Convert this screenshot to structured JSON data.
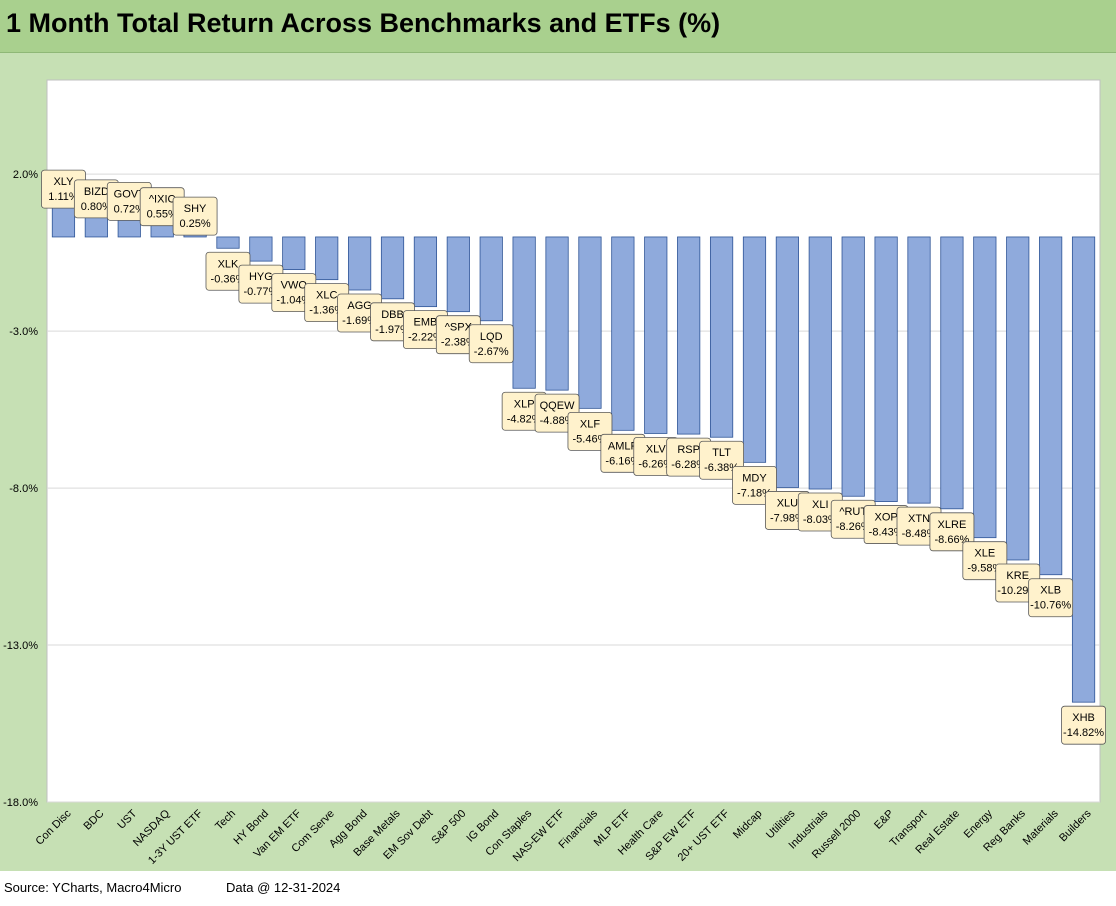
{
  "title": "1 Month Total Return Across Benchmarks and ETFs (%)",
  "footer": {
    "source": "Source: YCharts, Macro4Micro",
    "date": "Data @ 12-31-2024"
  },
  "colors": {
    "bar": "#8faadc",
    "bar_border": "#2f5597",
    "label_fill": "#fff2cc",
    "background": "#c6e0b4",
    "title_bg": "#a9d08e"
  },
  "chart_data": {
    "type": "bar",
    "title": "1 Month Total Return Across Benchmarks and ETFs (%)",
    "xlabel": "",
    "ylabel": "",
    "ylim": [
      -18,
      5
    ],
    "yticks": [
      2,
      -3,
      -8,
      -13,
      -18
    ],
    "ytick_labels": [
      "2.0%",
      "-3.0%",
      "-8.0%",
      "-13.0%",
      "-18.0%"
    ],
    "grid": true,
    "categories": [
      "Con Disc",
      "BDC",
      "UST",
      "NASDAQ",
      "1-3Y UST ETF",
      "Tech",
      "HY Bond",
      "Van EM ETF",
      "Com Serve",
      "Agg Bond",
      "Base Metals",
      "EM Sov Debt",
      "S&P 500",
      "IG Bond",
      "Con Staples",
      "NAS-EW ETF",
      "Financials",
      "MLP ETF",
      "Health Care",
      "S&P EW ETF",
      "20+ UST ETF",
      "Midcap",
      "Utilities",
      "Industrials",
      "Russell 2000",
      "E&P",
      "Transport",
      "Real Estate",
      "Energy",
      "Reg Banks",
      "Materials",
      "Builders"
    ],
    "tickers": [
      "XLY",
      "BIZD",
      "GOVT",
      "^IXIC",
      "SHY",
      "XLK",
      "HYG",
      "VWO",
      "XLC",
      "AGG",
      "DBB",
      "EMB",
      "^SPX",
      "LQD",
      "XLP",
      "QQEW",
      "XLF",
      "AMLP",
      "XLV",
      "RSP",
      "TLT",
      "MDY",
      "XLU",
      "XLI",
      "^RUT",
      "XOP",
      "XTN",
      "XLRE",
      "XLE",
      "KRE",
      "XLB",
      "XHB"
    ],
    "value_labels": [
      "1.11%",
      "0.80%",
      "0.72%",
      "0.55%",
      "0.25%",
      "-0.36%",
      "-0.77%",
      "-1.04%",
      "-1.36%",
      "-1.69%",
      "-1.97%",
      "-2.22%",
      "-2.38%",
      "-2.67%",
      "-4.82%",
      "-4.88%",
      "-5.46%",
      "-6.16%",
      "-6.26%",
      "-6.28%",
      "-6.38%",
      "-7.18%",
      "-7.98%",
      "-8.03%",
      "-8.26%",
      "-8.43%",
      "-8.48%",
      "-8.66%",
      "-9.58%",
      "-10.29%",
      "-10.76%",
      "-14.82%"
    ],
    "values": [
      1.11,
      0.8,
      0.72,
      0.55,
      0.25,
      -0.36,
      -0.77,
      -1.04,
      -1.36,
      -1.69,
      -1.97,
      -2.22,
      -2.38,
      -2.67,
      -4.82,
      -4.88,
      -5.46,
      -6.16,
      -6.26,
      -6.28,
      -6.38,
      -7.18,
      -7.98,
      -8.03,
      -8.26,
      -8.43,
      -8.48,
      -8.66,
      -9.58,
      -10.29,
      -10.76,
      -14.82
    ]
  }
}
